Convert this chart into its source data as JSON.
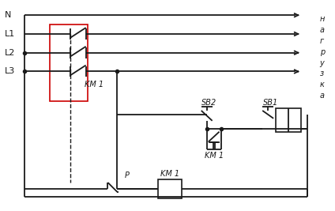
{
  "bg_color": "#ffffff",
  "line_color": "#1a1a1a",
  "red_rect_color": "#cc0000",
  "labels_left": [
    "N",
    "L1",
    "L2",
    "L3"
  ],
  "label_KM1_main": "KM 1",
  "label_KM1_ctrl": "KM 1",
  "label_KM1_coil": "KM 1",
  "label_SB1": "SB1",
  "label_SB2": "SB2",
  "label_P": "P",
  "nagr_letters": [
    "н",
    "а",
    "г",
    "р",
    "у",
    "з",
    "к",
    "а"
  ]
}
